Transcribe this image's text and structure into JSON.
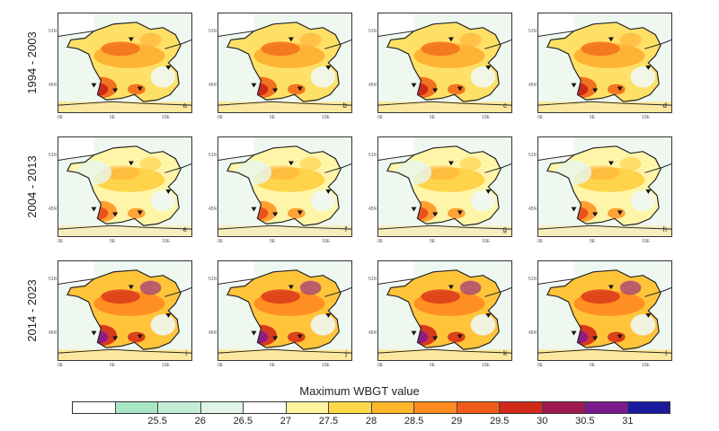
{
  "figure": {
    "rows": [
      {
        "period": "1994 - 2003",
        "intensity": 1
      },
      {
        "period": "2004 - 2013",
        "intensity": 0
      },
      {
        "period": "2014 - 2023",
        "intensity": 2
      }
    ],
    "panels_per_row": 4,
    "lat_ticks": [
      "51N",
      "45N"
    ],
    "lon_ticks": [
      "0E",
      "5E",
      "10E"
    ],
    "panel_letters": [
      "a",
      "b",
      "c",
      "d",
      "e",
      "f",
      "g",
      "h",
      "i",
      "j",
      "k",
      "l"
    ],
    "markers": "triangle-down station markers"
  },
  "colorbar": {
    "title": "Maximum WBGT value",
    "labels": [
      "25.5",
      "26",
      "26.5",
      "27",
      "27.5",
      "28",
      "28.5",
      "29",
      "29.5",
      "30",
      "30.5",
      "31"
    ],
    "colors": [
      "#ffffff",
      "#a8e6c5",
      "#c4edd6",
      "#dff5e8",
      "#ffffff",
      "#fff3a0",
      "#ffd84a",
      "#ffb42a",
      "#ff8a1f",
      "#f25a1a",
      "#d12a1a",
      "#9e1a4e",
      "#7a1a8c",
      "#1a1a9e"
    ]
  }
}
